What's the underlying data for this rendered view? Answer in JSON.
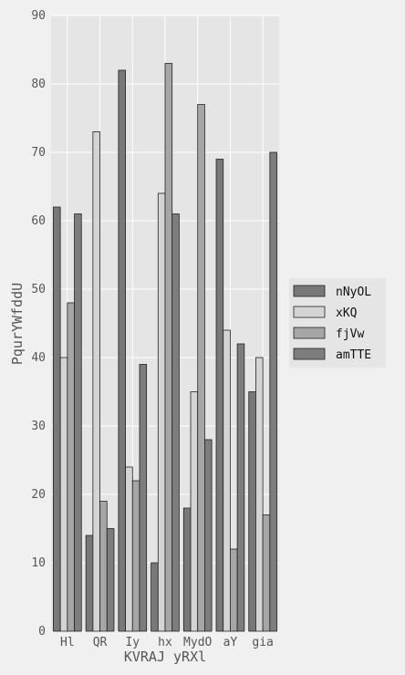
{
  "chart_data": {
    "type": "bar",
    "title": "",
    "xlabel": "KVRAJ yRXl",
    "ylabel": "PqurYWfddU",
    "categories": [
      "Hl",
      "QR",
      "Iy",
      "hx",
      "MydO",
      "aY",
      "gia"
    ],
    "series": [
      {
        "name": "nNyOL",
        "values": [
          62,
          14,
          82,
          10,
          18,
          69,
          35
        ],
        "color": "#787878"
      },
      {
        "name": "xKQ",
        "values": [
          40,
          73,
          24,
          64,
          35,
          44,
          40
        ],
        "color": "#d4d4d4"
      },
      {
        "name": "fjVw",
        "values": [
          48,
          19,
          22,
          83,
          77,
          12,
          17
        ],
        "color": "#a6a6a6"
      },
      {
        "name": "amTTE",
        "values": [
          61,
          15,
          39,
          61,
          28,
          42,
          70
        ],
        "color": "#7d7d7d"
      }
    ],
    "ylim": [
      0,
      90
    ],
    "yticks": [
      0,
      10,
      20,
      30,
      40,
      50,
      60,
      70,
      80,
      90
    ],
    "grid": true,
    "legend_position": "right"
  },
  "colors": {
    "figure_background": "#f0f0f0",
    "plot_background": "#e5e5e5",
    "grid": "#ffffff",
    "bar_edge": "#222222"
  }
}
